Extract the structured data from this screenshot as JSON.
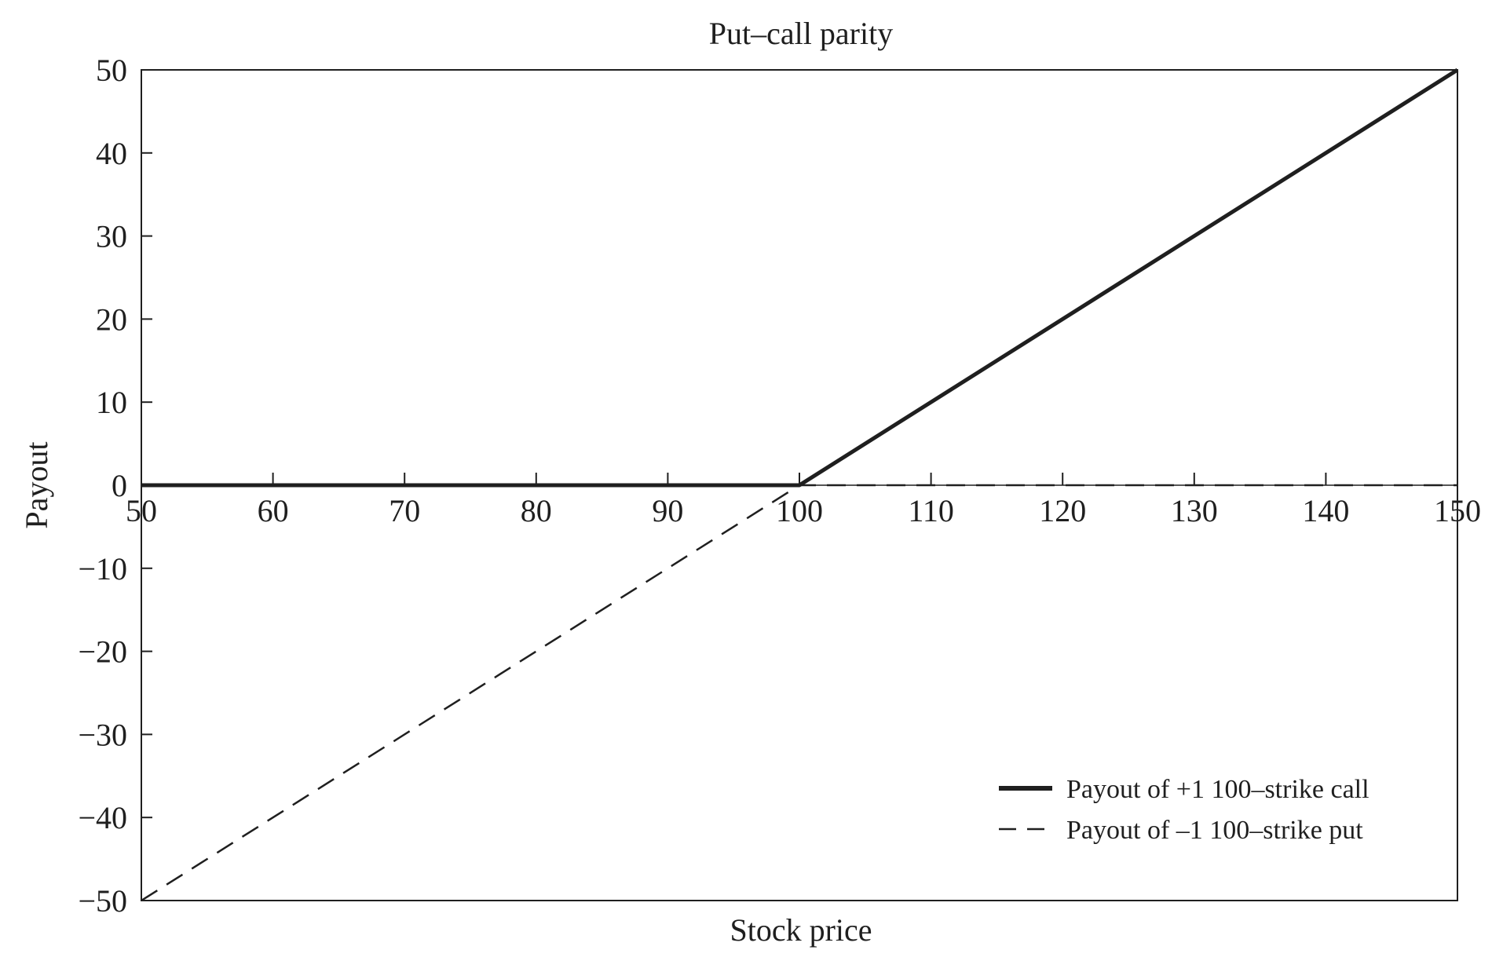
{
  "chart_data": {
    "type": "line",
    "title": "Put–call parity",
    "xlabel": "Stock price",
    "ylabel": "Payout",
    "xlim": [
      50,
      150
    ],
    "ylim": [
      -50,
      50
    ],
    "xticks": [
      50,
      60,
      70,
      80,
      90,
      100,
      110,
      120,
      130,
      140,
      150
    ],
    "yticks": [
      50,
      40,
      30,
      20,
      10,
      0,
      -10,
      -20,
      -30,
      -40,
      -50
    ],
    "xtick_labels": [
      "50",
      "60",
      "70",
      "80",
      "90",
      "100",
      "110",
      "120",
      "130",
      "140",
      "150"
    ],
    "ytick_labels": [
      "50",
      "40",
      "30",
      "20",
      "10",
      "0",
      "−10",
      "−20",
      "−30",
      "−40",
      "−50"
    ],
    "grid": false,
    "legend_position": "bottom-right",
    "series": [
      {
        "name": "Payout of +1 100–strike call",
        "style": "solid",
        "color": "#1f1f1f",
        "x": [
          50,
          100,
          150
        ],
        "y": [
          0,
          0,
          50
        ]
      },
      {
        "name": "Payout of –1 100–strike put",
        "style": "dashed",
        "color": "#1f1f1f",
        "x": [
          50,
          100,
          150
        ],
        "y": [
          -50,
          0,
          0
        ]
      }
    ]
  }
}
